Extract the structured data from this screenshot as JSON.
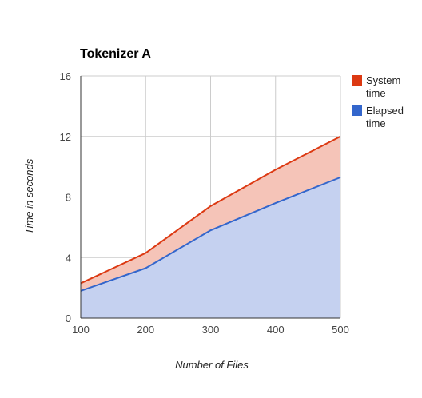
{
  "chart_data": {
    "type": "area",
    "stacked": true,
    "title": "Tokenizer A",
    "xlabel": "Number of Files",
    "ylabel": "Time in seconds",
    "x": [
      100,
      200,
      300,
      400,
      500
    ],
    "x_tick_labels": [
      "100",
      "200",
      "300",
      "400",
      "500"
    ],
    "y_tick_labels": [
      "0",
      "4",
      "8",
      "12",
      "16"
    ],
    "ylim": [
      0,
      16
    ],
    "xlim": [
      100,
      500
    ],
    "grid": true,
    "legend_position": "right",
    "series": [
      {
        "name": "Elapsed time",
        "legend_lines": [
          "Elapsed",
          "time"
        ],
        "values": [
          1.8,
          3.3,
          5.8,
          7.6,
          9.3
        ],
        "color": "#3366cc",
        "fill": "#c5d1f0"
      },
      {
        "name": "System time",
        "legend_lines": [
          "System",
          "time"
        ],
        "values": [
          0.5,
          1.0,
          1.6,
          2.2,
          2.7
        ],
        "color": "#dc3912",
        "fill": "#f5c4b8"
      }
    ]
  }
}
